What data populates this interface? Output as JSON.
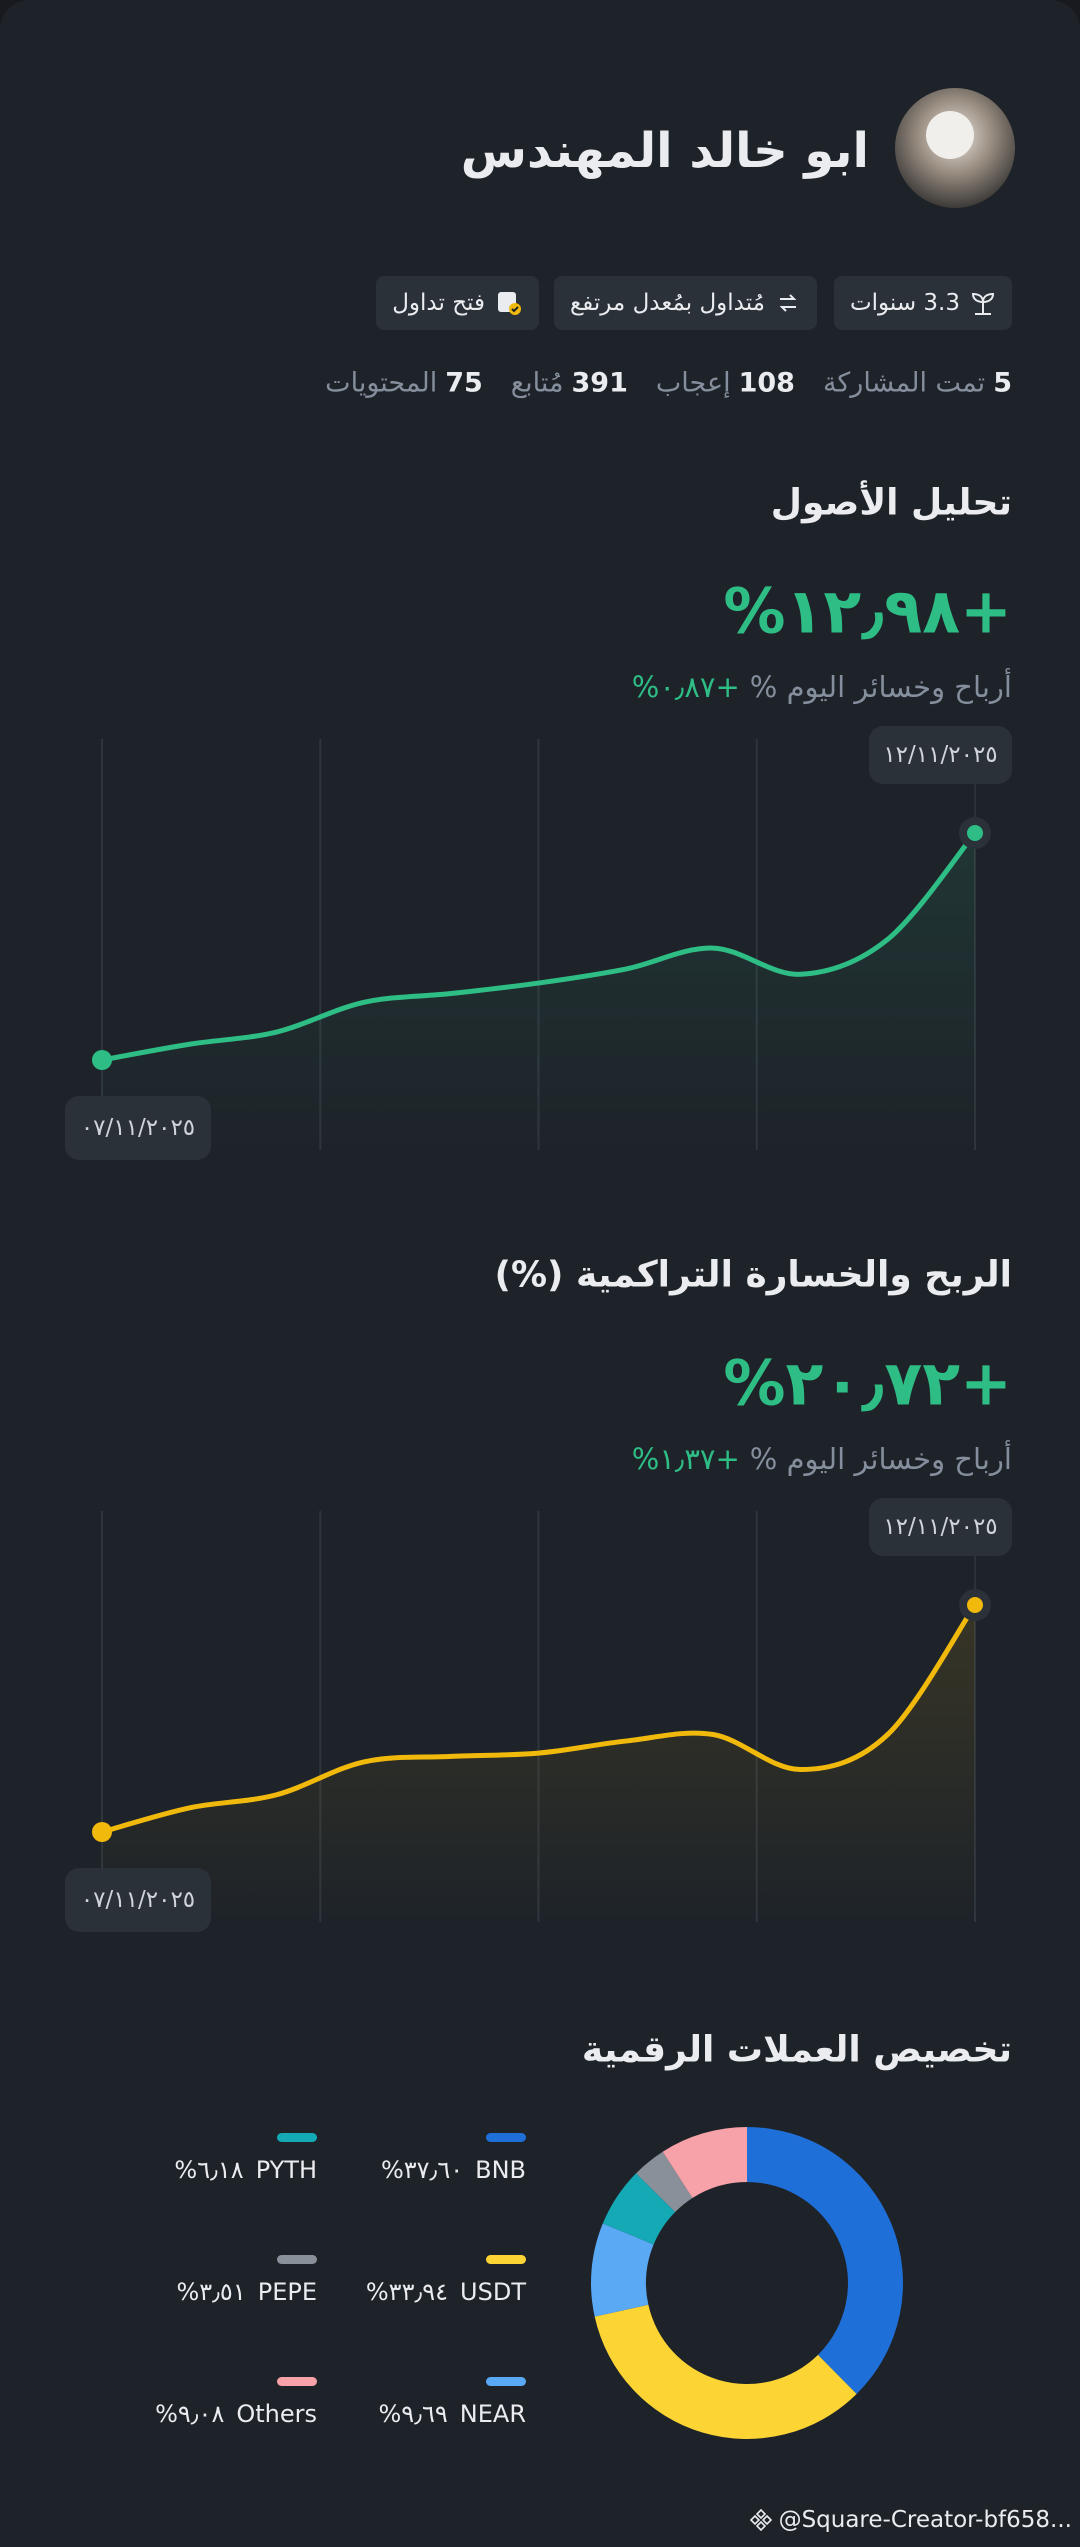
{
  "profile": {
    "name": "ابو خالد المهندس",
    "badges": [
      "3.3 سنوات",
      "مُتداول بمُعدل مرتفع",
      "فتح تداول"
    ],
    "stats": [
      {
        "value": 5,
        "label": "تمت المشاركة"
      },
      {
        "value": 108,
        "label": "إعجاب"
      },
      {
        "value": 391,
        "label": "مُتابع"
      },
      {
        "value": 75,
        "label": "المحتويات"
      }
    ]
  },
  "chart_data": [
    {
      "type": "line",
      "title": "تحليل الأصول",
      "change_label": "%١٢٫٩٨+",
      "today_label": "أرباح وخسائر اليوم %",
      "today_change": "%٠٫٨٧+",
      "categories": [
        "٠٧/١١/٢٠٢٥",
        null,
        null,
        null,
        null,
        null,
        null,
        null,
        null,
        null,
        "١٢/١١/٢٠٢٥"
      ],
      "values": [
        0,
        0.9,
        1.6,
        3.3,
        3.8,
        4.4,
        5.2,
        6.4,
        4.9,
        6.9,
        12.98
      ],
      "color": "#2ebd85"
    },
    {
      "type": "line",
      "title": "الربح والخسارة التراكمية (%)",
      "change_label": "%٢٠٫٧٢+",
      "today_label": "أرباح وخسائر اليوم %",
      "today_change": "%١٫٣٧+",
      "categories": [
        "٠٧/١١/٢٠٢٥",
        null,
        null,
        null,
        null,
        null,
        null,
        null,
        null,
        null,
        "١٢/١١/٢٠٢٥"
      ],
      "values": [
        0,
        2.2,
        3.4,
        6.4,
        6.9,
        7.2,
        8.3,
        8.9,
        5.7,
        8.9,
        20.72
      ],
      "color": "#f0b90b"
    },
    {
      "type": "pie",
      "title": "تخصيص العملات الرقمية",
      "categories": [
        "BNB",
        "USDT",
        "NEAR",
        "PYTH",
        "PEPE",
        "Others"
      ],
      "values": [
        37.6,
        33.94,
        9.69,
        6.18,
        3.51,
        9.08
      ],
      "value_labels": [
        "%٣٧٫٦٠",
        "%٣٣٫٩٤",
        "%٩٫٦٩",
        "%٦٫١٨",
        "%٣٫٥١",
        "%٩٫٠٨"
      ],
      "colors": [
        "#1f6fd8",
        "#fcd535",
        "#5aa9f5",
        "#14a9b5",
        "#8a9099",
        "#f7a1a9"
      ]
    }
  ],
  "footer": "@Square-Creator-bf658..."
}
